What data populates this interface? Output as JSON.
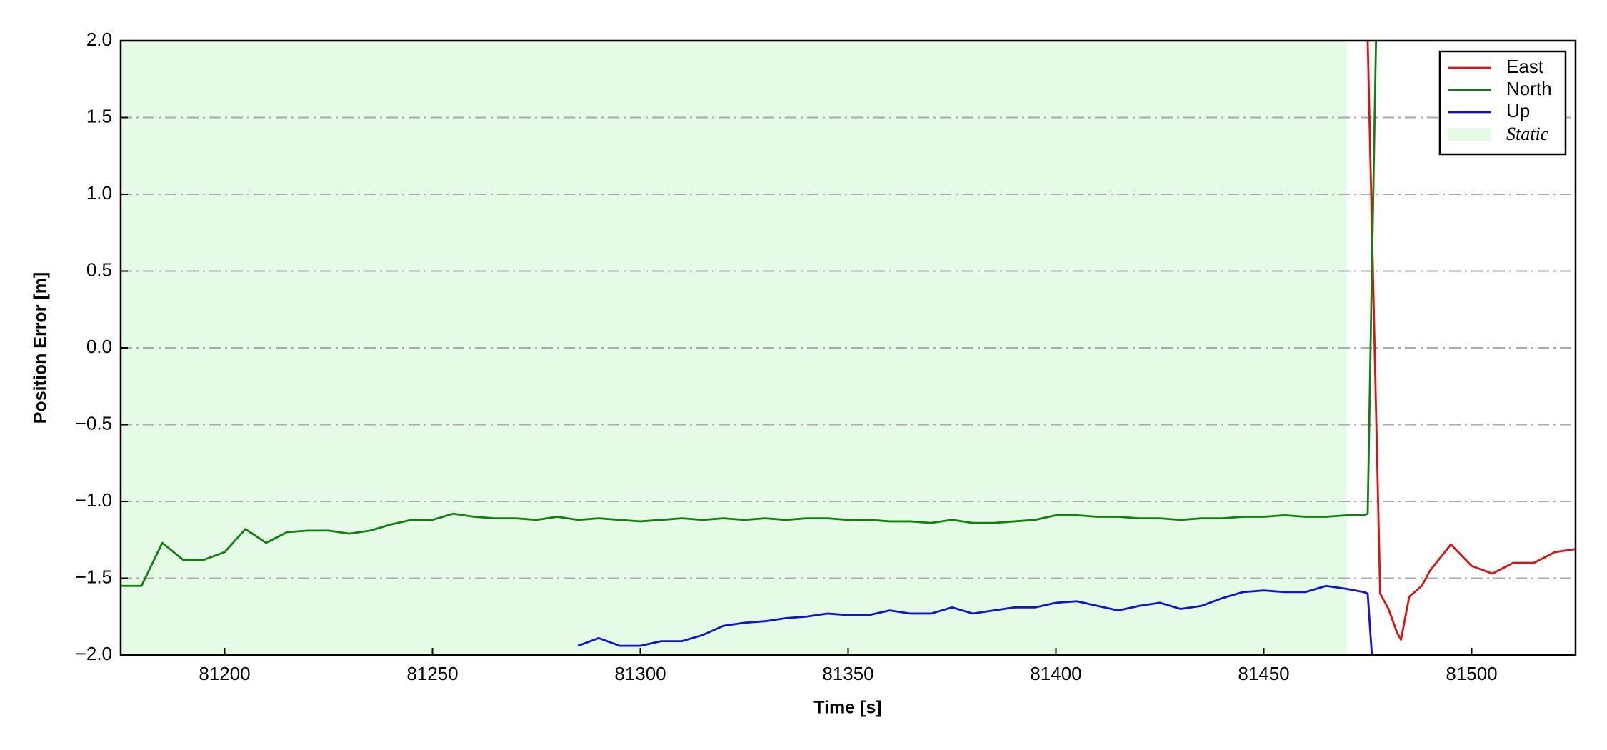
{
  "chart_data": {
    "type": "line",
    "xlabel": "Time [s]",
    "ylabel": "Position Error [m]",
    "x": [
      81175,
      81180,
      81185,
      81190,
      81195,
      81200,
      81205,
      81210,
      81215,
      81220,
      81225,
      81230,
      81235,
      81240,
      81245,
      81250,
      81255,
      81260,
      81265,
      81270,
      81275,
      81280,
      81285,
      81290,
      81295,
      81300,
      81305,
      81310,
      81315,
      81320,
      81325,
      81330,
      81335,
      81340,
      81345,
      81350,
      81355,
      81360,
      81365,
      81370,
      81375,
      81380,
      81385,
      81390,
      81395,
      81400,
      81405,
      81410,
      81415,
      81420,
      81425,
      81430,
      81435,
      81440,
      81445,
      81450,
      81455,
      81460,
      81465,
      81470,
      81474,
      81475,
      81476,
      81477,
      81478,
      81480,
      81482,
      81483,
      81485,
      81488,
      81490,
      81495,
      81500,
      81505,
      81510,
      81515,
      81520,
      81525
    ],
    "series": [
      {
        "name": "East",
        "color": "#e01010",
        "values": [
          null,
          null,
          null,
          null,
          null,
          null,
          null,
          null,
          null,
          null,
          null,
          null,
          null,
          null,
          null,
          null,
          null,
          null,
          null,
          null,
          null,
          null,
          null,
          null,
          null,
          null,
          null,
          null,
          null,
          null,
          null,
          null,
          null,
          null,
          null,
          null,
          null,
          null,
          null,
          null,
          null,
          null,
          null,
          null,
          null,
          null,
          null,
          null,
          null,
          null,
          null,
          null,
          null,
          null,
          null,
          null,
          null,
          null,
          null,
          null,
          null,
          2.0,
          0.8,
          -0.4,
          -1.6,
          -1.7,
          -1.85,
          -1.9,
          -1.62,
          -1.55,
          -1.45,
          -1.28,
          -1.42,
          -1.47,
          -1.4,
          -1.4,
          -1.33,
          -1.31
        ]
      },
      {
        "name": "North",
        "color": "#108010",
        "values": [
          -1.55,
          -1.55,
          -1.27,
          -1.38,
          -1.38,
          -1.33,
          -1.18,
          -1.27,
          -1.2,
          -1.19,
          -1.19,
          -1.21,
          -1.19,
          -1.15,
          -1.12,
          -1.12,
          -1.08,
          -1.1,
          -1.11,
          -1.11,
          -1.12,
          -1.1,
          -1.12,
          -1.11,
          -1.12,
          -1.13,
          -1.12,
          -1.11,
          -1.12,
          -1.11,
          -1.12,
          -1.11,
          -1.12,
          -1.11,
          -1.11,
          -1.12,
          -1.12,
          -1.13,
          -1.13,
          -1.14,
          -1.12,
          -1.14,
          -1.14,
          -1.13,
          -1.12,
          -1.09,
          -1.09,
          -1.1,
          -1.1,
          -1.11,
          -1.11,
          -1.12,
          -1.11,
          -1.11,
          -1.1,
          -1.1,
          -1.09,
          -1.1,
          -1.1,
          -1.09,
          -1.09,
          -1.08,
          0.5,
          2.0,
          null,
          null,
          null,
          null,
          null,
          null,
          null,
          null,
          null,
          null,
          null,
          null,
          null,
          null
        ]
      },
      {
        "name": "Up",
        "color": "#1010e0",
        "values": [
          null,
          null,
          null,
          null,
          null,
          null,
          null,
          null,
          null,
          null,
          null,
          null,
          null,
          null,
          null,
          null,
          null,
          null,
          null,
          null,
          null,
          null,
          -1.94,
          -1.89,
          -1.94,
          -1.94,
          -1.91,
          -1.91,
          -1.87,
          -1.81,
          -1.79,
          -1.78,
          -1.76,
          -1.75,
          -1.73,
          -1.74,
          -1.74,
          -1.71,
          -1.73,
          -1.73,
          -1.69,
          -1.73,
          -1.71,
          -1.69,
          -1.69,
          -1.66,
          -1.65,
          -1.68,
          -1.71,
          -1.68,
          -1.66,
          -1.7,
          -1.68,
          -1.63,
          -1.59,
          -1.58,
          -1.59,
          -1.59,
          -1.55,
          -1.57,
          -1.59,
          -1.6,
          -2.0,
          null,
          null,
          null,
          null,
          null,
          null,
          null,
          null,
          null,
          null,
          null,
          null,
          null,
          null,
          null
        ]
      }
    ],
    "span": {
      "name": "Static",
      "start": 81175,
      "end": 81470,
      "color": "#e6fbe6"
    },
    "xlim": [
      81175,
      81525
    ],
    "xticks": [
      81200,
      81250,
      81300,
      81350,
      81400,
      81450,
      81500
    ],
    "ylim": [
      -2,
      2
    ],
    "yticks": [
      {
        "value": -2,
        "label": "−2.0"
      },
      {
        "value": -1.5,
        "label": "−1.5"
      },
      {
        "value": -1,
        "label": "−1.0"
      },
      {
        "value": -0.5,
        "label": "−0.5"
      },
      {
        "value": 0,
        "label": "0.0"
      },
      {
        "value": 0.5,
        "label": "0.5"
      },
      {
        "value": 1,
        "label": "1.0"
      },
      {
        "value": 1.5,
        "label": "1.5"
      },
      {
        "value": 2,
        "label": "2.0"
      }
    ],
    "grid": true,
    "legend": "upper right"
  }
}
